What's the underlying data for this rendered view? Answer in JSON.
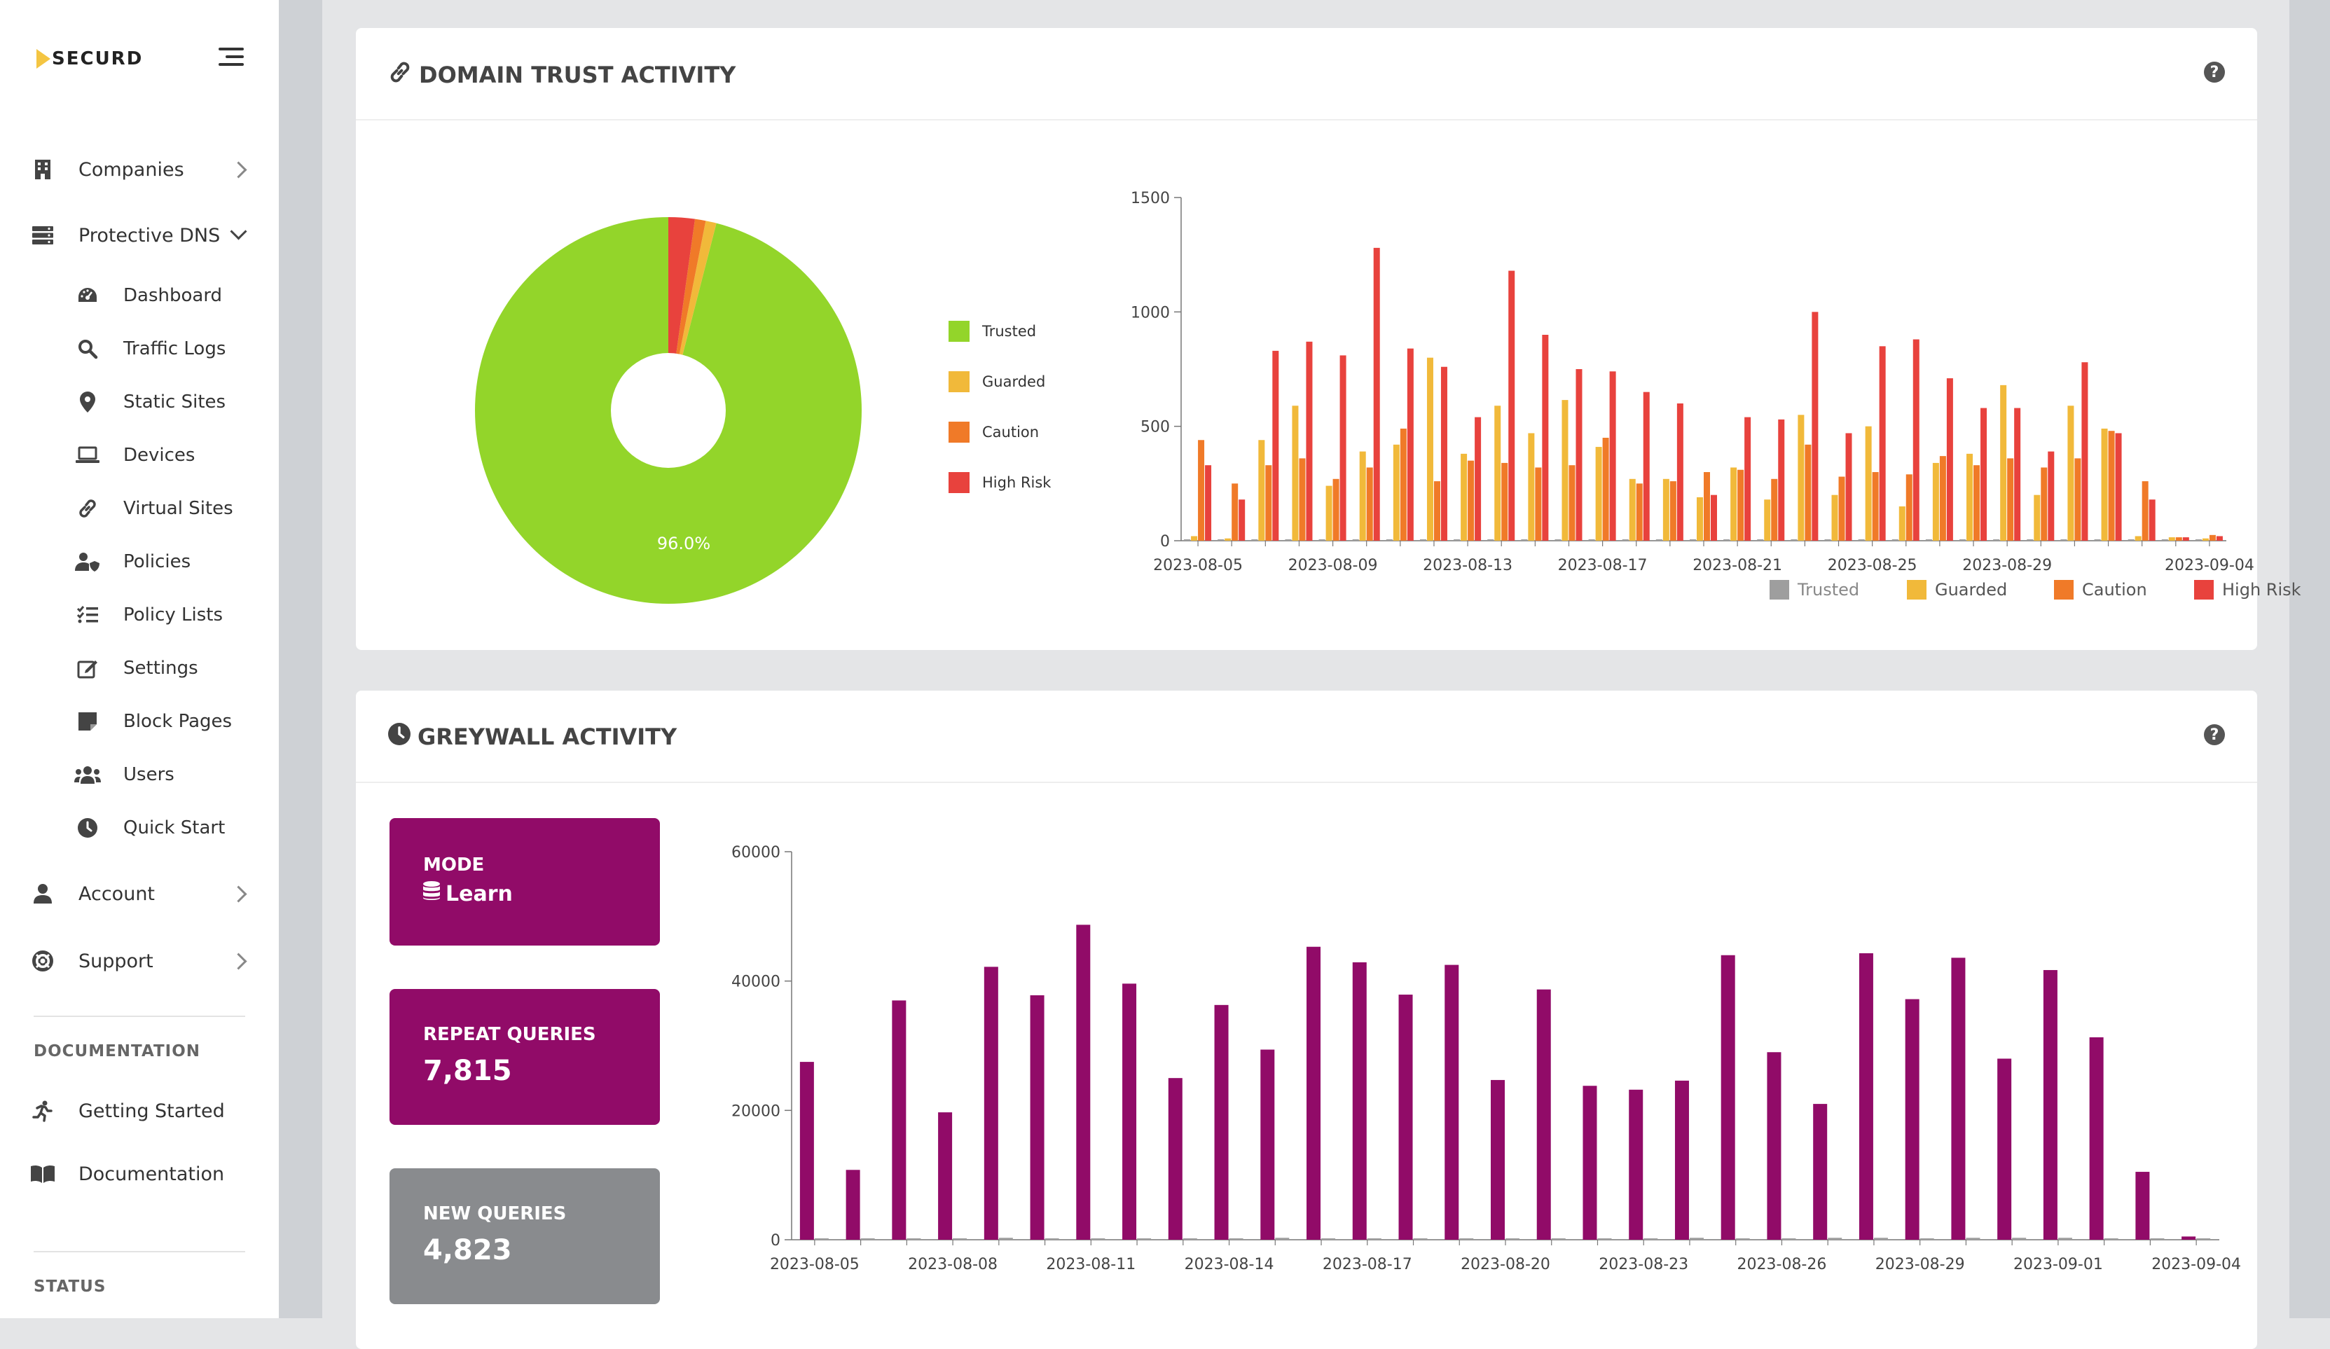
{
  "brand": {
    "name": "SECURD"
  },
  "sidebar": {
    "items": [
      {
        "label": "Companies",
        "icon": "building-icon"
      },
      {
        "label": "Protective DNS",
        "icon": "server-icon"
      },
      {
        "label": "Account",
        "icon": "user-icon"
      },
      {
        "label": "Support",
        "icon": "life-ring-icon"
      }
    ],
    "dns_items": [
      {
        "label": "Dashboard",
        "icon": "gauge-icon"
      },
      {
        "label": "Traffic Logs",
        "icon": "search-icon"
      },
      {
        "label": "Static Sites",
        "icon": "map-pin-icon"
      },
      {
        "label": "Devices",
        "icon": "laptop-icon"
      },
      {
        "label": "Virtual Sites",
        "icon": "link-icon"
      },
      {
        "label": "Policies",
        "icon": "user-shield-icon"
      },
      {
        "label": "Policy Lists",
        "icon": "list-check-icon"
      },
      {
        "label": "Settings",
        "icon": "edit-icon"
      },
      {
        "label": "Block Pages",
        "icon": "note-icon"
      },
      {
        "label": "Users",
        "icon": "users-icon"
      },
      {
        "label": "Quick Start",
        "icon": "clock-icon"
      }
    ],
    "documentation_title": "DOCUMENTATION",
    "doc_items": [
      {
        "label": "Getting Started",
        "icon": "running-icon"
      },
      {
        "label": "Documentation",
        "icon": "book-icon"
      }
    ],
    "status_title": "STATUS"
  },
  "domain_trust": {
    "title": "DOMAIN TRUST ACTIVITY",
    "pie_label": "96.0%"
  },
  "greywall": {
    "title": "GREYWALL ACTIVITY",
    "mode_title": "MODE",
    "mode_value": "Learn",
    "repeat_title": "REPEAT QUERIES",
    "repeat_value": "7,815",
    "new_title": "NEW QUERIES",
    "new_value": "4,823"
  },
  "colors": {
    "trusted_pie": "#93d52a",
    "trusted_bar": "#9e9e9e",
    "guarded": "#f1b93a",
    "caution": "#f07a28",
    "high_risk": "#e8423d",
    "greywall": "#910b68",
    "new_queries": "#898b8e"
  },
  "chart_data": [
    {
      "type": "pie",
      "labels": [
        "Trusted",
        "Guarded",
        "Caution",
        "High Risk"
      ],
      "values": [
        96.0,
        0.9,
        0.9,
        2.2
      ],
      "data_label": "96.0%",
      "legend": "right"
    },
    {
      "type": "bar",
      "categories": [
        "2023-08-05",
        "2023-08-06",
        "2023-08-07",
        "2023-08-08",
        "2023-08-09",
        "2023-08-10",
        "2023-08-11",
        "2023-08-12",
        "2023-08-13",
        "2023-08-14",
        "2023-08-15",
        "2023-08-16",
        "2023-08-17",
        "2023-08-18",
        "2023-08-19",
        "2023-08-20",
        "2023-08-21",
        "2023-08-22",
        "2023-08-23",
        "2023-08-24",
        "2023-08-25",
        "2023-08-26",
        "2023-08-27",
        "2023-08-28",
        "2023-08-29",
        "2023-08-30",
        "2023-08-31",
        "2023-09-01",
        "2023-09-02",
        "2023-09-03",
        "2023-09-04"
      ],
      "tick_labels": [
        "2023-08-05",
        "2023-08-09",
        "2023-08-13",
        "2023-08-17",
        "2023-08-21",
        "2023-08-25",
        "2023-08-29",
        "2023-09-04"
      ],
      "series": [
        {
          "name": "Trusted",
          "values": [
            0,
            0,
            0,
            0,
            0,
            0,
            0,
            0,
            0,
            0,
            0,
            0,
            0,
            0,
            0,
            0,
            0,
            0,
            0,
            0,
            0,
            0,
            0,
            0,
            0,
            0,
            0,
            0,
            0,
            0,
            0
          ]
        },
        {
          "name": "Guarded",
          "values": [
            20,
            10,
            440,
            590,
            240,
            390,
            420,
            800,
            380,
            590,
            470,
            615,
            410,
            270,
            270,
            190,
            320,
            180,
            550,
            200,
            500,
            150,
            340,
            380,
            680,
            200,
            590,
            490,
            20,
            15,
            10
          ]
        },
        {
          "name": "Caution",
          "values": [
            440,
            250,
            330,
            360,
            270,
            320,
            490,
            260,
            350,
            340,
            320,
            330,
            450,
            250,
            260,
            300,
            310,
            270,
            420,
            280,
            300,
            290,
            370,
            330,
            360,
            320,
            360,
            480,
            260,
            15,
            25
          ]
        },
        {
          "name": "High Risk",
          "values": [
            330,
            180,
            830,
            870,
            810,
            1280,
            840,
            760,
            540,
            1180,
            900,
            750,
            740,
            650,
            600,
            200,
            540,
            530,
            1000,
            470,
            850,
            880,
            710,
            580,
            580,
            390,
            780,
            470,
            180,
            15,
            20
          ]
        }
      ],
      "ylim": [
        0,
        1500
      ],
      "yticks": [
        0,
        500,
        1000,
        1500
      ],
      "legend": "bottom"
    },
    {
      "type": "bar",
      "categories": [
        "2023-08-05",
        "2023-08-06",
        "2023-08-07",
        "2023-08-08",
        "2023-08-09",
        "2023-08-10",
        "2023-08-11",
        "2023-08-12",
        "2023-08-13",
        "2023-08-14",
        "2023-08-15",
        "2023-08-16",
        "2023-08-17",
        "2023-08-18",
        "2023-08-19",
        "2023-08-20",
        "2023-08-21",
        "2023-08-22",
        "2023-08-23",
        "2023-08-24",
        "2023-08-25",
        "2023-08-26",
        "2023-08-27",
        "2023-08-28",
        "2023-08-29",
        "2023-08-30",
        "2023-08-31",
        "2023-09-01",
        "2023-09-02",
        "2023-09-03",
        "2023-09-04"
      ],
      "tick_labels": [
        "2023-08-05",
        "2023-08-08",
        "2023-08-11",
        "2023-08-14",
        "2023-08-17",
        "2023-08-20",
        "2023-08-23",
        "2023-08-26",
        "2023-08-29",
        "2023-09-01",
        "2023-09-04"
      ],
      "series": [
        {
          "values": [
            27500,
            10800,
            37000,
            19700,
            42200,
            37800,
            48700,
            39600,
            25000,
            36300,
            29400,
            45300,
            42900,
            37900,
            42500,
            24700,
            38700,
            23800,
            23200,
            24600,
            44000,
            29000,
            21000,
            44300,
            37200,
            43600,
            28000,
            41700,
            31300,
            10500,
            500
          ]
        },
        {
          "values": [
            200,
            200,
            200,
            200,
            300,
            200,
            200,
            200,
            200,
            200,
            300,
            200,
            200,
            200,
            200,
            200,
            200,
            200,
            200,
            300,
            200,
            200,
            300,
            300,
            200,
            300,
            300,
            300,
            200,
            200,
            200
          ]
        }
      ],
      "ylim": [
        0,
        60000
      ],
      "yticks": [
        0,
        20000,
        40000,
        60000
      ]
    }
  ]
}
